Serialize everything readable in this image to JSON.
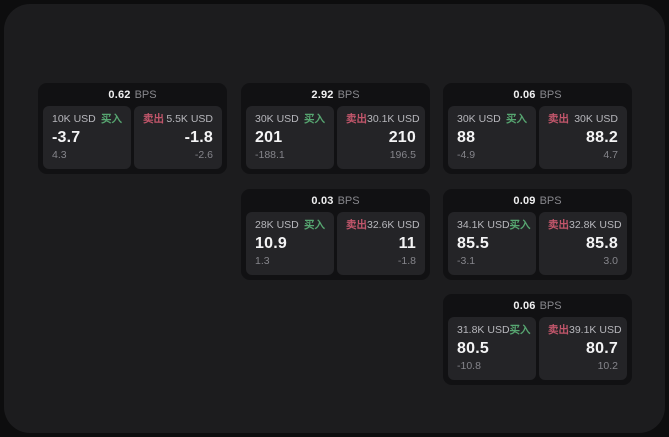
{
  "labels": {
    "bps_unit": "BPS",
    "buy": "买入",
    "sell": "卖出"
  },
  "colors": {
    "page_background": "#0d0d0e",
    "surface": "#1c1c1e",
    "card": "#111113",
    "tile": "#242427",
    "buy_accent": "#57a671",
    "sell_accent": "#c2566b",
    "primary_text": "#f4f4f5",
    "muted_text": "#85858b"
  },
  "cards": [
    {
      "bps": "0.62",
      "buy": {
        "amount": "10K USD",
        "price": "-3.7",
        "change": "4.3"
      },
      "sell": {
        "amount": "5.5K USD",
        "price": "-1.8",
        "change": "-2.6"
      }
    },
    {
      "bps": "2.92",
      "buy": {
        "amount": "30K USD",
        "price": "201",
        "change": "-188.1"
      },
      "sell": {
        "amount": "30.1K USD",
        "price": "210",
        "change": "196.5"
      }
    },
    {
      "bps": "0.06",
      "buy": {
        "amount": "30K USD",
        "price": "88",
        "change": "-4.9"
      },
      "sell": {
        "amount": "30K USD",
        "price": "88.2",
        "change": "4.7"
      }
    },
    {
      "bps": "0.03",
      "buy": {
        "amount": "28K USD",
        "price": "10.9",
        "change": "1.3"
      },
      "sell": {
        "amount": "32.6K USD",
        "price": "11",
        "change": "-1.8"
      }
    },
    {
      "bps": "0.09",
      "buy": {
        "amount": "34.1K USD",
        "price": "85.5",
        "change": "-3.1"
      },
      "sell": {
        "amount": "32.8K USD",
        "price": "85.8",
        "change": "3.0"
      }
    },
    {
      "bps": "0.06",
      "buy": {
        "amount": "31.8K USD",
        "price": "80.5",
        "change": "-10.8"
      },
      "sell": {
        "amount": "39.1K USD",
        "price": "80.7",
        "change": "10.2"
      }
    }
  ]
}
